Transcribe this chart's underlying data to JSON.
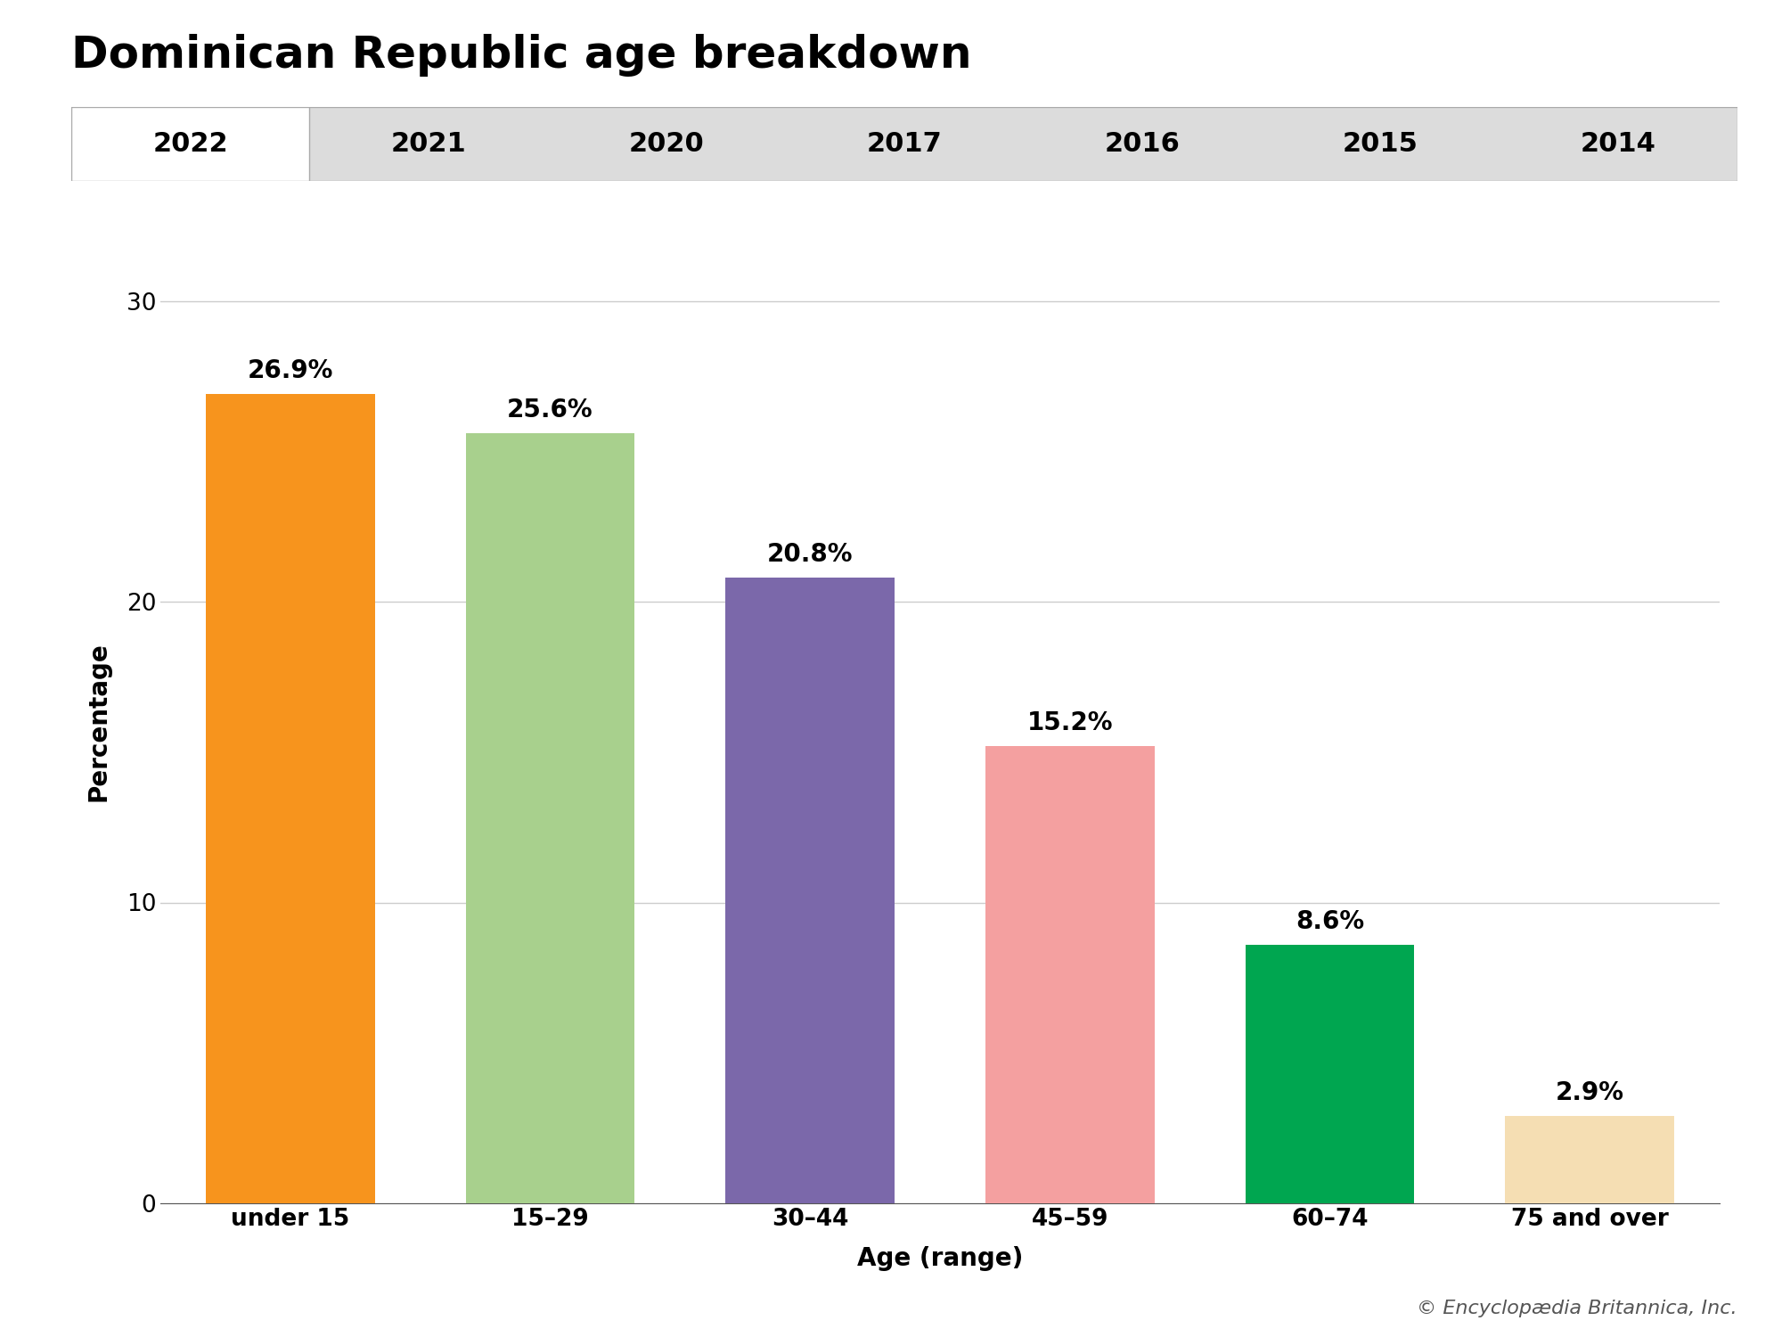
{
  "title": "Dominican Republic age breakdown",
  "categories": [
    "under 15",
    "15–29",
    "30–44",
    "45–59",
    "60–74",
    "75 and over"
  ],
  "values": [
    26.9,
    25.6,
    20.8,
    15.2,
    8.6,
    2.9
  ],
  "labels": [
    "26.9%",
    "25.6%",
    "20.8%",
    "15.2%",
    "8.6%",
    "2.9%"
  ],
  "bar_colors": [
    "#F7941D",
    "#A8D08D",
    "#7B68AA",
    "#F4A0A0",
    "#00A650",
    "#F5DEB3"
  ],
  "xlabel": "Age (range)",
  "ylabel": "Percentage",
  "ylim": [
    0,
    32
  ],
  "yticks": [
    0,
    10,
    20,
    30
  ],
  "tab_years": [
    "2022",
    "2021",
    "2020",
    "2017",
    "2016",
    "2015",
    "2014"
  ],
  "active_tab": "2022",
  "tab_bg_active": "#FFFFFF",
  "tab_bg_inactive": "#DCDCDC",
  "tab_border_color": "#AAAAAA",
  "tab_text_color": "#000000",
  "background_color": "#FFFFFF",
  "plot_bg_color": "#FFFFFF",
  "title_fontsize": 36,
  "label_fontsize": 20,
  "axis_label_fontsize": 20,
  "tick_fontsize": 19,
  "tab_fontsize": 22,
  "footnote": "© Encyclopædia Britannica, Inc.",
  "footnote_fontsize": 16
}
